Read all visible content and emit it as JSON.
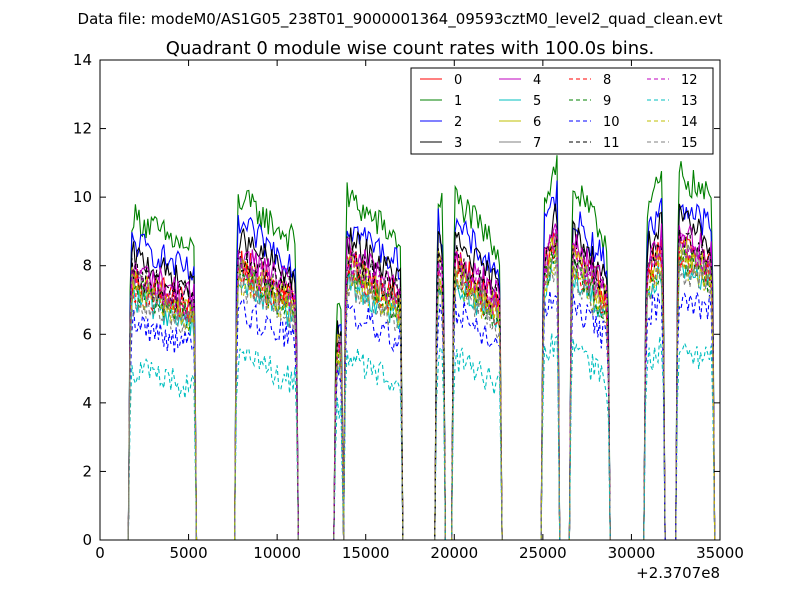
{
  "figure": {
    "suptitle": "Data file: modeM0/AS1G05_238T01_9000001364_09593cztM0_level2_quad_clean.evt",
    "title": "Quadrant 0 module wise count rates with 100.0s bins.",
    "x_offset_label": "+2.3707e8"
  },
  "chart_data": {
    "type": "line",
    "title": "Quadrant 0 module wise count rates with 100.0s bins.",
    "xlabel": "",
    "ylabel": "",
    "xlim": [
      0,
      35000
    ],
    "ylim": [
      0,
      14
    ],
    "x_offset": 237070000,
    "x_ticks": [
      "0",
      "5000",
      "10000",
      "15000",
      "20000",
      "25000",
      "30000",
      "35000"
    ],
    "y_ticks": [
      "0",
      "2",
      "4",
      "6",
      "8",
      "10",
      "12",
      "14"
    ],
    "grid": false,
    "legend": {
      "placement": "top-right",
      "columns": 4
    },
    "segments": [
      {
        "start": 1700,
        "end": 5350,
        "base": 8.4,
        "decay": 0.12
      },
      {
        "start": 7700,
        "end": 11100,
        "base": 8.9,
        "decay": 0.14
      },
      {
        "start": 13300,
        "end": 13650,
        "base": 6.2,
        "decay": 0.0
      },
      {
        "start": 13850,
        "end": 17000,
        "base": 8.9,
        "decay": 0.14
      },
      {
        "start": 19000,
        "end": 19400,
        "base": 9.0,
        "decay": 0.05
      },
      {
        "start": 19950,
        "end": 22600,
        "base": 8.9,
        "decay": 0.17
      },
      {
        "start": 25000,
        "end": 25850,
        "base": 8.6,
        "decay": -0.15
      },
      {
        "start": 26600,
        "end": 28700,
        "base": 9.2,
        "decay": 0.17
      },
      {
        "start": 30800,
        "end": 31800,
        "base": 8.5,
        "decay": -0.1
      },
      {
        "start": 32600,
        "end": 34600,
        "base": 9.5,
        "decay": 0.08
      }
    ],
    "series": [
      {
        "name": "0",
        "color": "#ff0000",
        "dash": "solid",
        "scale": 0.92
      },
      {
        "name": "1",
        "color": "#008000",
        "dash": "solid",
        "scale": 1.13
      },
      {
        "name": "2",
        "color": "#0000ff",
        "dash": "solid",
        "scale": 1.04
      },
      {
        "name": "3",
        "color": "#000000",
        "dash": "solid",
        "scale": 0.99
      },
      {
        "name": "4",
        "color": "#bf00bf",
        "dash": "solid",
        "scale": 0.95
      },
      {
        "name": "5",
        "color": "#00bfbf",
        "dash": "solid",
        "scale": 0.85
      },
      {
        "name": "6",
        "color": "#bfbf00",
        "dash": "solid",
        "scale": 0.9
      },
      {
        "name": "7",
        "color": "#808080",
        "dash": "solid",
        "scale": 0.89
      },
      {
        "name": "8",
        "color": "#ff0000",
        "dash": "dashed",
        "scale": 0.88
      },
      {
        "name": "9",
        "color": "#008000",
        "dash": "dashed",
        "scale": 0.87
      },
      {
        "name": "10",
        "color": "#0000ff",
        "dash": "dashed",
        "scale": 0.76
      },
      {
        "name": "11",
        "color": "#000000",
        "dash": "dashed",
        "scale": 0.93
      },
      {
        "name": "12",
        "color": "#bf00bf",
        "dash": "dashed",
        "scale": 0.91
      },
      {
        "name": "13",
        "color": "#00bfbf",
        "dash": "dashed",
        "scale": 0.6
      },
      {
        "name": "14",
        "color": "#bfbf00",
        "dash": "dashed",
        "scale": 0.86
      },
      {
        "name": "15",
        "color": "#808080",
        "dash": "dashed",
        "scale": 0.84
      }
    ]
  }
}
